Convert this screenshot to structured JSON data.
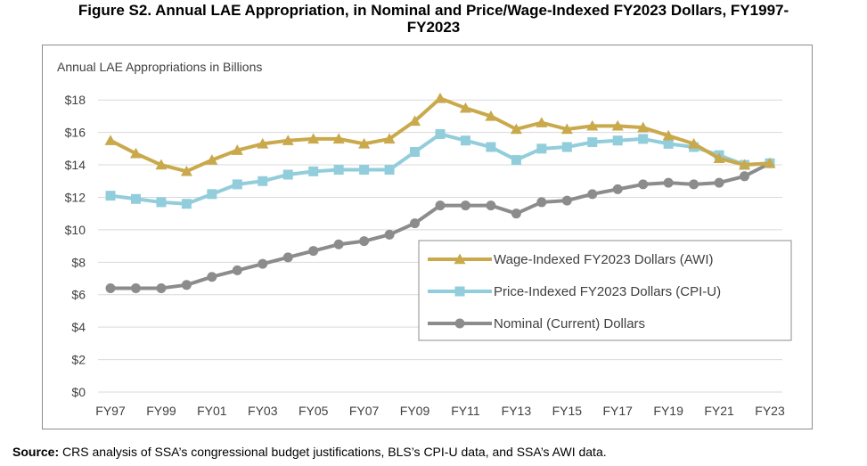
{
  "figure": {
    "title": "Figure S2. Annual LAE Appropriation, in Nominal and Price/Wage-Indexed FY2023 Dollars, FY1997-FY2023",
    "title_line1": "Figure S2. Annual LAE Appropriation, in Nominal and Price/Wage-Indexed FY2023 Dollars, FY1997-",
    "title_line2": "FY2023",
    "source_label": "Source:",
    "source_text": "CRS analysis of SSA’s congressional budget justifications, BLS’s CPI-U data, and SSA’s AWI data."
  },
  "chart_data": {
    "type": "line",
    "title": "",
    "ylabel": "Annual LAE Appropriations in Billions",
    "xlabel": "",
    "ylim": [
      0,
      19
    ],
    "yticks": [
      0,
      2,
      4,
      6,
      8,
      10,
      12,
      14,
      16,
      18
    ],
    "ytick_labels": [
      "$0",
      "$2",
      "$4",
      "$6",
      "$8",
      "$10",
      "$12",
      "$14",
      "$16",
      "$18"
    ],
    "grid": "horizontal",
    "legend_position": "bottom-right",
    "x": [
      "FY97",
      "FY98",
      "FY99",
      "FY00",
      "FY01",
      "FY02",
      "FY03",
      "FY04",
      "FY05",
      "FY06",
      "FY07",
      "FY08",
      "FY09",
      "FY10",
      "FY11",
      "FY12",
      "FY13",
      "FY14",
      "FY15",
      "FY16",
      "FY17",
      "FY18",
      "FY19",
      "FY20",
      "FY21",
      "FY22",
      "FY23"
    ],
    "xtick_labels": [
      "FY97",
      "",
      "FY99",
      "",
      "FY01",
      "",
      "FY03",
      "",
      "FY05",
      "",
      "FY07",
      "",
      "FY09",
      "",
      "FY11",
      "",
      "FY13",
      "",
      "FY15",
      "",
      "FY17",
      "",
      "FY19",
      "",
      "FY21",
      "",
      "FY23"
    ],
    "series": [
      {
        "name": "Wage-Indexed FY2023 Dollars (AWI)",
        "color": "#c9a94b",
        "marker": "triangle",
        "values": [
          15.5,
          14.7,
          14.0,
          13.6,
          14.3,
          14.9,
          15.3,
          15.5,
          15.6,
          15.6,
          15.3,
          15.6,
          16.7,
          18.1,
          17.5,
          17.0,
          16.2,
          16.6,
          16.2,
          16.4,
          16.4,
          16.3,
          15.8,
          15.3,
          14.4,
          14.0,
          14.1
        ]
      },
      {
        "name": "Price-Indexed FY2023 Dollars (CPI-U)",
        "color": "#92cddc",
        "marker": "square",
        "values": [
          12.1,
          11.9,
          11.7,
          11.6,
          12.2,
          12.8,
          13.0,
          13.4,
          13.6,
          13.7,
          13.7,
          13.7,
          14.8,
          15.9,
          15.5,
          15.1,
          14.3,
          15.0,
          15.1,
          15.4,
          15.5,
          15.6,
          15.3,
          15.1,
          14.6,
          14.0,
          14.1
        ]
      },
      {
        "name": "Nominal (Current) Dollars",
        "color": "#8c8c8c",
        "marker": "circle",
        "values": [
          6.4,
          6.4,
          6.4,
          6.6,
          7.1,
          7.5,
          7.9,
          8.3,
          8.7,
          9.1,
          9.3,
          9.7,
          10.4,
          11.5,
          11.5,
          11.5,
          11.0,
          11.7,
          11.8,
          12.2,
          12.5,
          12.8,
          12.9,
          12.8,
          12.9,
          13.3,
          14.1
        ]
      }
    ]
  }
}
